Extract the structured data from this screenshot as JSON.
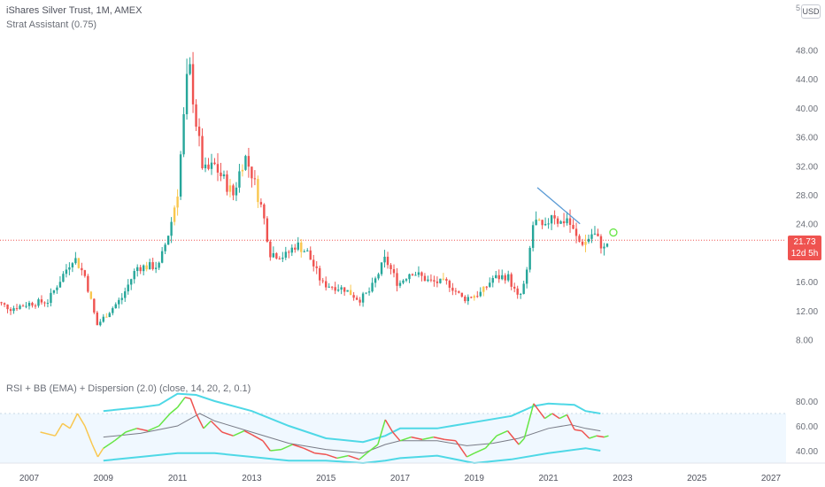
{
  "header": {
    "title": "iShares Silver Trust, 1M, AMEX",
    "indicator": "Strat Assistant (0.75)",
    "currency_button": "USD",
    "corner_mark": "5"
  },
  "price_badge": {
    "price": "21.73",
    "countdown": "12d 5h"
  },
  "rsi_panel": {
    "title": "RSI + BB (EMA) + Dispersion (2.0) (close, 14, 20, 2, 0.1)"
  },
  "colors": {
    "up": "#26a69a",
    "down": "#ef5350",
    "inside": "#f9c74f",
    "rsi_up": "#66e645",
    "rsi_down": "#ef5350",
    "bands": "#4ed8e6",
    "basis": "#787b86",
    "rsi_fill": "#f0f8ff",
    "price_line": "#ef5350"
  },
  "chart_data": [
    {
      "type": "candlestick",
      "title": "iShares Silver Trust, 1M, AMEX",
      "x_ticks": [
        "2007",
        "2009",
        "2011",
        "2013",
        "2015",
        "2017",
        "2019",
        "2021",
        "2023",
        "2025",
        "2027"
      ],
      "y_ticks": [
        "8.00",
        "12.00",
        "16.00",
        "24.00",
        "28.00",
        "32.00",
        "36.00",
        "40.00",
        "44.00",
        "48.00"
      ],
      "ylim": [
        6,
        50
      ],
      "last_price": 21.73,
      "series_key": [
        [
          2006.0,
          13.5
        ],
        [
          2006.5,
          12.3
        ],
        [
          2007.0,
          13.0
        ],
        [
          2007.5,
          13.3
        ],
        [
          2008.2,
          19.5
        ],
        [
          2008.5,
          16.8
        ],
        [
          2008.83,
          10.0
        ],
        [
          2009.0,
          11.0
        ],
        [
          2009.5,
          13.8
        ],
        [
          2009.9,
          18.0
        ],
        [
          2010.5,
          18.2
        ],
        [
          2010.8,
          23.5
        ],
        [
          2011.0,
          28.5
        ],
        [
          2011.3,
          46.5
        ],
        [
          2011.5,
          38.0
        ],
        [
          2011.7,
          31.0
        ],
        [
          2012.0,
          32.0
        ],
        [
          2012.5,
          28.0
        ],
        [
          2012.8,
          33.5
        ],
        [
          2013.0,
          31.0
        ],
        [
          2013.3,
          25.5
        ],
        [
          2013.5,
          20.0
        ],
        [
          2013.9,
          19.5
        ],
        [
          2014.2,
          21.2
        ],
        [
          2014.5,
          20.0
        ],
        [
          2014.9,
          15.7
        ],
        [
          2015.5,
          15.0
        ],
        [
          2015.9,
          13.5
        ],
        [
          2016.2,
          14.8
        ],
        [
          2016.6,
          19.2
        ],
        [
          2016.95,
          15.6
        ],
        [
          2017.3,
          17.5
        ],
        [
          2017.8,
          16.0
        ],
        [
          2018.3,
          15.8
        ],
        [
          2018.7,
          13.6
        ],
        [
          2019.2,
          14.5
        ],
        [
          2019.5,
          16.5
        ],
        [
          2019.9,
          16.8
        ],
        [
          2020.2,
          13.5
        ],
        [
          2020.4,
          16.5
        ],
        [
          2020.6,
          24.5
        ],
        [
          2020.9,
          23.0
        ],
        [
          2021.1,
          25.8
        ],
        [
          2021.3,
          24.0
        ],
        [
          2021.5,
          24.8
        ],
        [
          2021.8,
          21.5
        ],
        [
          2022.0,
          21.5
        ],
        [
          2022.2,
          22.8
        ],
        [
          2022.5,
          20.5
        ],
        [
          2022.62,
          21.73
        ]
      ]
    },
    {
      "type": "line",
      "title": "RSI + BB (EMA) + Dispersion (2.0) (close, 14, 20, 2, 0.1)",
      "x_ticks": [
        "2007",
        "2009",
        "2011",
        "2013",
        "2015",
        "2017",
        "2019",
        "2021",
        "2023",
        "2025",
        "2027"
      ],
      "y_ticks": [
        "40.00",
        "60.00",
        "80.00"
      ],
      "ylim": [
        25,
        85
      ],
      "band_lines": [
        30,
        70
      ],
      "series": [
        {
          "values": [
            [
              2007.3,
              55
            ],
            [
              2007.7,
              52
            ],
            [
              2007.9,
              62
            ],
            [
              2008.1,
              58
            ],
            [
              2008.3,
              70
            ],
            [
              2008.5,
              60
            ],
            [
              2008.7,
              45
            ],
            [
              2008.85,
              35
            ],
            [
              2009.0,
              42
            ],
            [
              2009.3,
              48
            ],
            [
              2009.6,
              55
            ],
            [
              2009.9,
              58
            ],
            [
              2010.2,
              56
            ],
            [
              2010.5,
              60
            ],
            [
              2010.8,
              70
            ],
            [
              2011.0,
              75
            ],
            [
              2011.2,
              83
            ],
            [
              2011.35,
              82
            ],
            [
              2011.5,
              70
            ],
            [
              2011.7,
              58
            ],
            [
              2011.9,
              64
            ],
            [
              2012.2,
              55
            ],
            [
              2012.5,
              52
            ],
            [
              2012.8,
              56
            ],
            [
              2013.0,
              53
            ],
            [
              2013.3,
              48
            ],
            [
              2013.5,
              40
            ],
            [
              2013.8,
              41
            ],
            [
              2014.1,
              45
            ],
            [
              2014.4,
              42
            ],
            [
              2014.7,
              38
            ],
            [
              2015.0,
              37
            ],
            [
              2015.3,
              34
            ],
            [
              2015.6,
              36
            ],
            [
              2015.9,
              33
            ],
            [
              2016.1,
              38
            ],
            [
              2016.4,
              45
            ],
            [
              2016.6,
              65
            ],
            [
              2016.8,
              55
            ],
            [
              2017.0,
              48
            ],
            [
              2017.3,
              51
            ],
            [
              2017.6,
              49
            ],
            [
              2017.9,
              51
            ],
            [
              2018.2,
              49
            ],
            [
              2018.5,
              48
            ],
            [
              2018.8,
              35
            ],
            [
              2019.0,
              38
            ],
            [
              2019.3,
              42
            ],
            [
              2019.6,
              52
            ],
            [
              2019.9,
              56
            ],
            [
              2020.2,
              45
            ],
            [
              2020.35,
              50
            ],
            [
              2020.6,
              78
            ],
            [
              2020.9,
              66
            ],
            [
              2021.1,
              70
            ],
            [
              2021.3,
              66
            ],
            [
              2021.5,
              69
            ],
            [
              2021.7,
              57
            ],
            [
              2021.9,
              56
            ],
            [
              2022.1,
              50
            ],
            [
              2022.3,
              52
            ],
            [
              2022.5,
              51
            ],
            [
              2022.62,
              52
            ]
          ]
        },
        {
          "values": [
            [
              2009.0,
              72
            ],
            [
              2010.0,
              75
            ],
            [
              2010.5,
              77
            ],
            [
              2011.0,
              86
            ],
            [
              2011.5,
              85
            ],
            [
              2012.0,
              80
            ],
            [
              2013.0,
              72
            ],
            [
              2014.0,
              60
            ],
            [
              2015.0,
              50
            ],
            [
              2016.0,
              47
            ],
            [
              2016.6,
              52
            ],
            [
              2017.0,
              58
            ],
            [
              2018.0,
              58
            ],
            [
              2019.0,
              63
            ],
            [
              2020.0,
              68
            ],
            [
              2020.6,
              76
            ],
            [
              2021.0,
              78
            ],
            [
              2021.7,
              77
            ],
            [
              2022.0,
              72
            ],
            [
              2022.4,
              70
            ]
          ]
        },
        {
          "values": [
            [
              2009.0,
              32
            ],
            [
              2010.0,
              35
            ],
            [
              2011.0,
              38
            ],
            [
              2012.0,
              38
            ],
            [
              2013.0,
              35
            ],
            [
              2014.0,
              32
            ],
            [
              2015.0,
              32
            ],
            [
              2016.0,
              30
            ],
            [
              2016.6,
              32
            ],
            [
              2017.0,
              34
            ],
            [
              2018.0,
              36
            ],
            [
              2019.0,
              30
            ],
            [
              2020.0,
              33
            ],
            [
              2021.0,
              38
            ],
            [
              2022.0,
              42
            ],
            [
              2022.4,
              40
            ]
          ]
        },
        {
          "values": [
            [
              2009.0,
              51
            ],
            [
              2010.0,
              54
            ],
            [
              2011.0,
              60
            ],
            [
              2011.6,
              70
            ],
            [
              2012.0,
              64
            ],
            [
              2013.0,
              55
            ],
            [
              2014.0,
              46
            ],
            [
              2015.0,
              41
            ],
            [
              2016.0,
              38
            ],
            [
              2016.6,
              45
            ],
            [
              2017.0,
              48
            ],
            [
              2018.0,
              48
            ],
            [
              2018.8,
              44
            ],
            [
              2019.5,
              46
            ],
            [
              2020.2,
              50
            ],
            [
              2021.0,
              58
            ],
            [
              2021.6,
              61
            ],
            [
              2022.0,
              58
            ],
            [
              2022.4,
              56
            ]
          ]
        }
      ]
    }
  ]
}
